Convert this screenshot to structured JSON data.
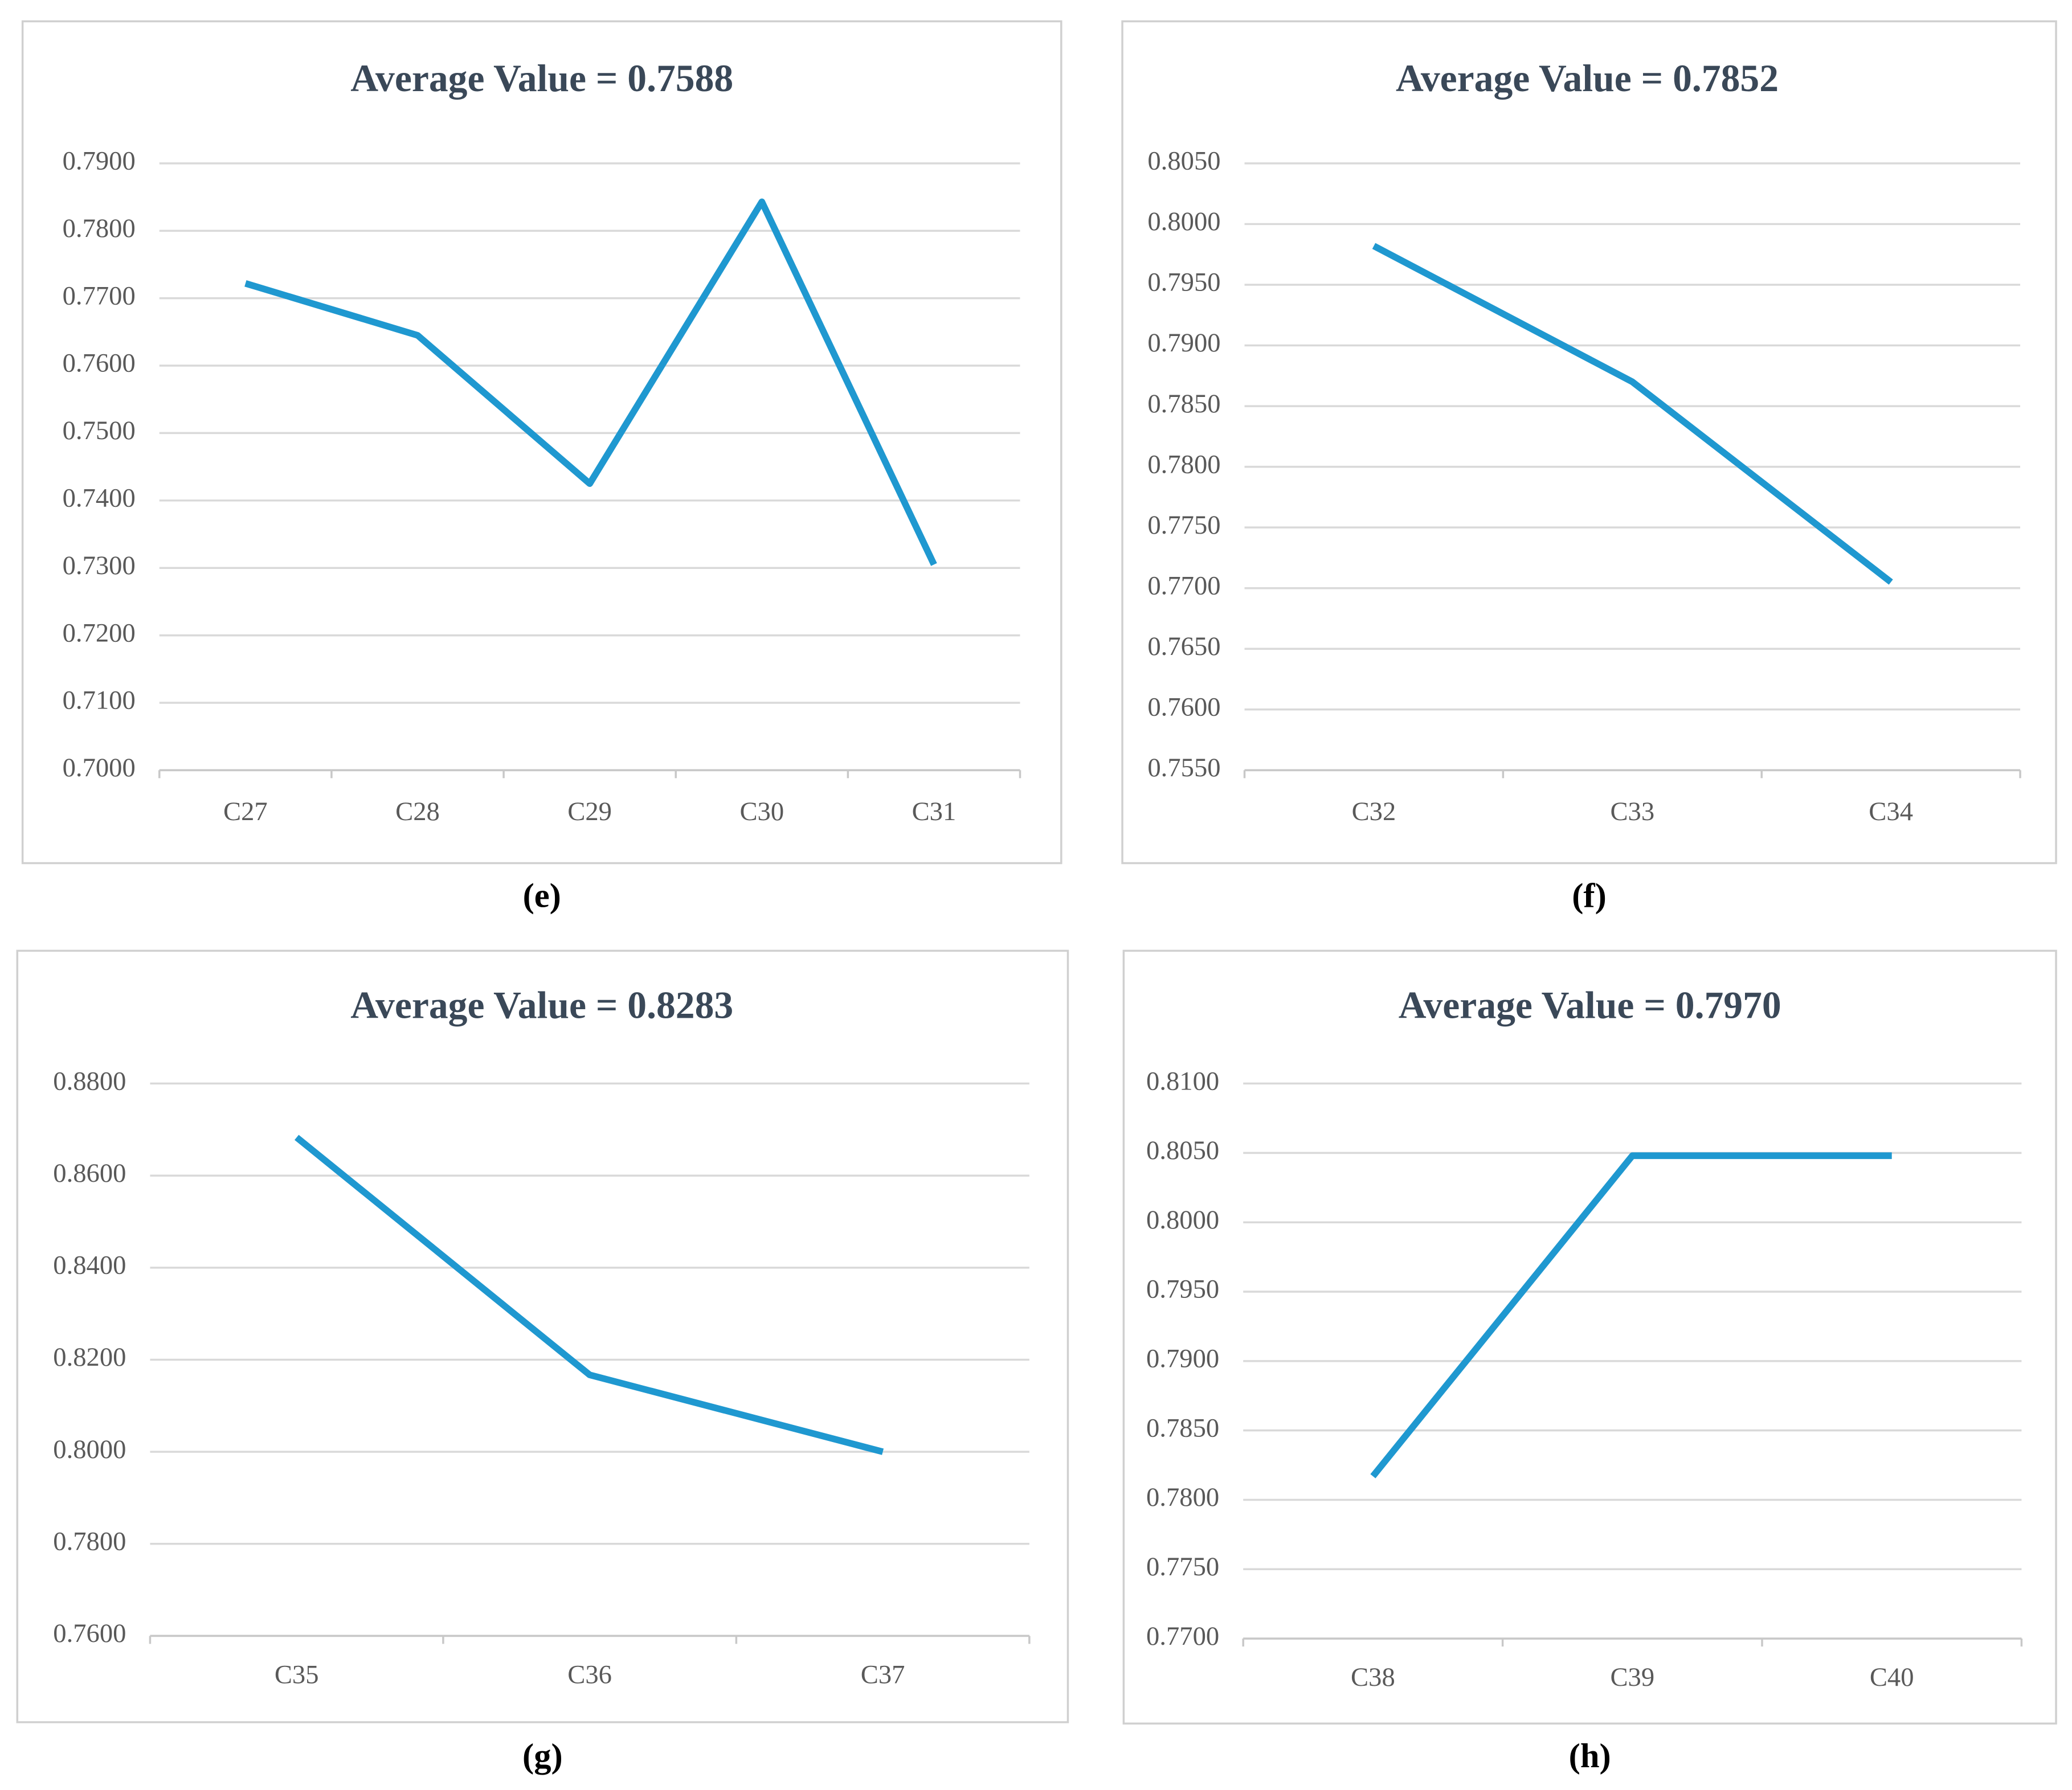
{
  "chart_data": [
    {
      "type": "line",
      "title": "Average Value = 0.7588",
      "caption": "(e)",
      "categories": [
        "C27",
        "C28",
        "C29",
        "C30",
        "C31"
      ],
      "series": [
        {
          "color": "#1f98d0",
          "values": [
            0.7722,
            0.7645,
            0.7425,
            0.7843,
            0.7305
          ]
        }
      ],
      "ylim": [
        0.7,
        0.79
      ],
      "yticks": [
        {
          "value": 0.7,
          "label": "0.7000"
        },
        {
          "value": 0.71,
          "label": "0.7100"
        },
        {
          "value": 0.72,
          "label": "0.7200"
        },
        {
          "value": 0.73,
          "label": "0.7300"
        },
        {
          "value": 0.74,
          "label": "0.7400"
        },
        {
          "value": 0.75,
          "label": "0.7500"
        },
        {
          "value": 0.76,
          "label": "0.7600"
        },
        {
          "value": 0.77,
          "label": "0.7700"
        },
        {
          "value": 0.78,
          "label": "0.7800"
        },
        {
          "value": 0.79,
          "label": "0.7900"
        }
      ],
      "grid": true
    },
    {
      "type": "line",
      "title": "Average Value = 0.7852",
      "caption": "(f)",
      "categories": [
        "C32",
        "C33",
        "C34"
      ],
      "series": [
        {
          "color": "#1f98d0",
          "values": [
            0.7982,
            0.787,
            0.7705
          ]
        }
      ],
      "ylim": [
        0.755,
        0.805
      ],
      "yticks": [
        {
          "value": 0.755,
          "label": "0.7550"
        },
        {
          "value": 0.76,
          "label": "0.7600"
        },
        {
          "value": 0.765,
          "label": "0.7650"
        },
        {
          "value": 0.77,
          "label": "0.7700"
        },
        {
          "value": 0.775,
          "label": "0.7750"
        },
        {
          "value": 0.78,
          "label": "0.7800"
        },
        {
          "value": 0.785,
          "label": "0.7850"
        },
        {
          "value": 0.79,
          "label": "0.7900"
        },
        {
          "value": 0.795,
          "label": "0.7950"
        },
        {
          "value": 0.8,
          "label": "0.8000"
        },
        {
          "value": 0.805,
          "label": "0.8050"
        }
      ],
      "grid": true
    },
    {
      "type": "line",
      "title": "Average Value = 0.8283",
      "caption": "(g)",
      "categories": [
        "C35",
        "C36",
        "C37"
      ],
      "series": [
        {
          "color": "#1f98d0",
          "values": [
            0.8683,
            0.8167,
            0.8
          ]
        }
      ],
      "ylim": [
        0.76,
        0.88
      ],
      "yticks": [
        {
          "value": 0.76,
          "label": "0.7600"
        },
        {
          "value": 0.78,
          "label": "0.7800"
        },
        {
          "value": 0.8,
          "label": "0.8000"
        },
        {
          "value": 0.82,
          "label": "0.8200"
        },
        {
          "value": 0.84,
          "label": "0.8400"
        },
        {
          "value": 0.86,
          "label": "0.8600"
        },
        {
          "value": 0.88,
          "label": "0.8800"
        }
      ],
      "grid": true
    },
    {
      "type": "line",
      "title": "Average Value = 0.7970",
      "caption": "(h)",
      "categories": [
        "C38",
        "C39",
        "C40"
      ],
      "series": [
        {
          "color": "#1f98d0",
          "values": [
            0.7817,
            0.8048,
            0.8048
          ]
        }
      ],
      "ylim": [
        0.77,
        0.81
      ],
      "yticks": [
        {
          "value": 0.77,
          "label": "0.7700"
        },
        {
          "value": 0.775,
          "label": "0.7750"
        },
        {
          "value": 0.78,
          "label": "0.7800"
        },
        {
          "value": 0.785,
          "label": "0.7850"
        },
        {
          "value": 0.79,
          "label": "0.7900"
        },
        {
          "value": 0.795,
          "label": "0.7950"
        },
        {
          "value": 0.8,
          "label": "0.8000"
        },
        {
          "value": 0.805,
          "label": "0.8050"
        },
        {
          "value": 0.81,
          "label": "0.8100"
        }
      ],
      "grid": true
    }
  ]
}
